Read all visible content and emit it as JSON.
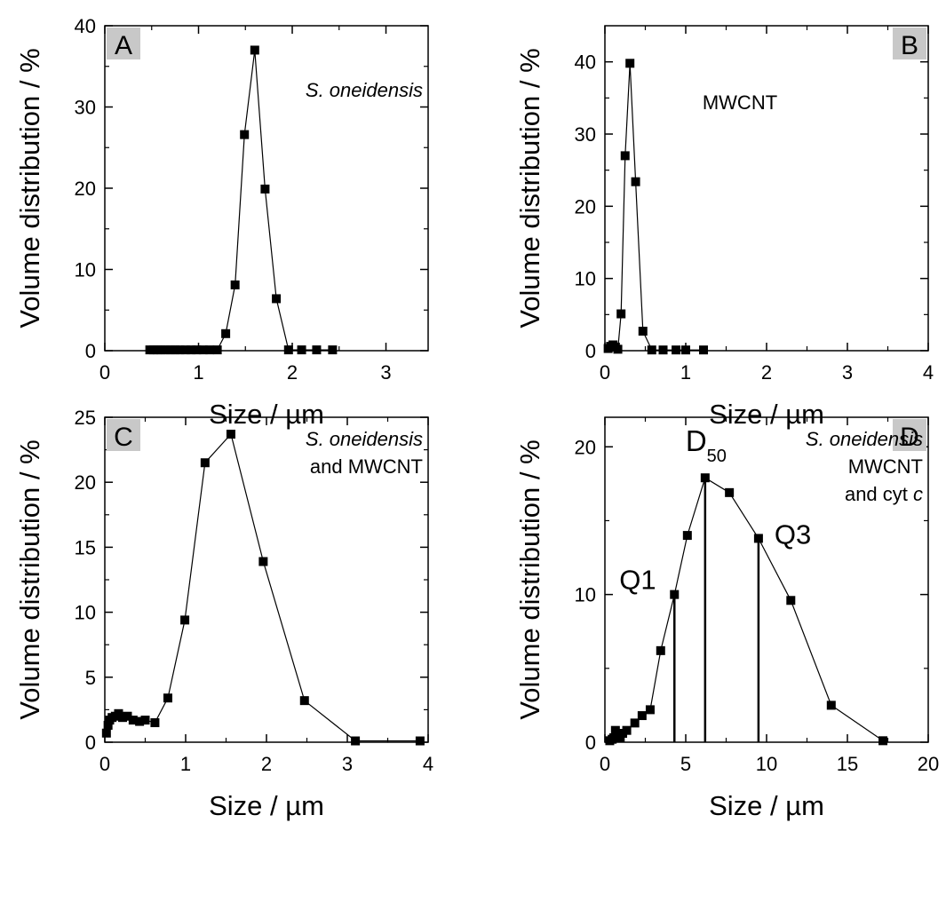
{
  "chart_data": [
    {
      "type": "scatter",
      "panel_label": "A",
      "xlabel": "Size / µm",
      "ylabel": "Volume distribution / %",
      "xlim": [
        0,
        3.45
      ],
      "ylim": [
        0,
        40
      ],
      "xticks": [
        0,
        1,
        2,
        3
      ],
      "yticks": [
        0,
        10,
        20,
        30,
        40
      ],
      "annotations": [
        {
          "lines": [
            {
              "text": "S. oneidensis",
              "italic": true
            }
          ]
        }
      ],
      "series": [
        {
          "x": [
            0.48,
            0.52,
            0.56,
            0.6,
            0.65,
            0.7,
            0.75,
            0.8,
            0.86,
            0.92,
            0.98,
            1.05,
            1.12,
            1.2,
            1.29,
            1.39,
            1.49,
            1.6,
            1.71,
            1.83,
            1.96,
            2.1,
            2.26,
            2.43
          ],
          "y": [
            0.1,
            0.1,
            0.1,
            0.1,
            0.1,
            0.1,
            0.1,
            0.1,
            0.1,
            0.1,
            0.1,
            0.1,
            0.1,
            0.1,
            2.1,
            8.1,
            26.6,
            37.0,
            19.9,
            6.4,
            0.1,
            0.1,
            0.1,
            0.1
          ]
        }
      ]
    },
    {
      "type": "scatter",
      "panel_label": "B",
      "xlabel": "Size / µm",
      "ylabel": "Volume distribution / %",
      "xlim": [
        0,
        4
      ],
      "ylim": [
        0,
        45
      ],
      "xticks": [
        0,
        1,
        2,
        3,
        4
      ],
      "yticks": [
        0,
        10,
        20,
        30,
        40
      ],
      "annotations": [
        {
          "lines": [
            {
              "text": "MWCNT",
              "italic": false
            }
          ]
        }
      ],
      "series": [
        {
          "x": [
            0.04,
            0.07,
            0.1,
            0.13,
            0.16,
            0.2,
            0.25,
            0.31,
            0.38,
            0.47,
            0.58,
            0.72,
            0.88,
            1.0,
            1.22
          ],
          "y": [
            0.3,
            0.6,
            0.8,
            0.5,
            0.2,
            5.1,
            27.0,
            39.8,
            23.4,
            2.7,
            0.1,
            0.1,
            0.1,
            0.1,
            0.1
          ]
        }
      ]
    },
    {
      "type": "scatter",
      "panel_label": "C",
      "xlabel": "Size / µm",
      "ylabel": "Volume distribution / %",
      "xlim": [
        0,
        4
      ],
      "ylim": [
        0,
        25
      ],
      "xticks": [
        0,
        1,
        2,
        3,
        4
      ],
      "yticks": [
        0,
        5,
        10,
        15,
        20,
        25
      ],
      "annotations": [
        {
          "lines": [
            {
              "text": "S. oneidensis",
              "italic": true
            },
            {
              "text": "and MWCNT",
              "italic": false
            }
          ]
        }
      ],
      "series": [
        {
          "x": [
            0.02,
            0.04,
            0.06,
            0.09,
            0.13,
            0.17,
            0.22,
            0.28,
            0.35,
            0.43,
            0.5,
            0.62,
            0.78,
            0.99,
            1.24,
            1.56,
            1.96,
            2.47,
            3.1,
            3.9
          ],
          "y": [
            0.7,
            1.3,
            1.7,
            1.9,
            2.0,
            2.2,
            1.9,
            2.0,
            1.7,
            1.6,
            1.7,
            1.5,
            3.4,
            9.4,
            21.5,
            23.7,
            13.9,
            3.2,
            0.1,
            0.1
          ]
        }
      ]
    },
    {
      "type": "scatter",
      "panel_label": "D",
      "xlabel": "Size / µm",
      "ylabel": "Volume distribution / %",
      "xlim": [
        0,
        20
      ],
      "ylim": [
        0,
        22
      ],
      "xticks": [
        0,
        5,
        10,
        15,
        20
      ],
      "yticks": [
        0,
        10,
        20
      ],
      "annotations": [
        {
          "lines": [
            {
              "text": "S. oneidensis",
              "italic": true
            },
            {
              "text": "MWCNT",
              "italic": false
            },
            {
              "text": "and cyt ",
              "italic": false,
              "suffix": "c"
            }
          ]
        },
        {
          "label": "Q1",
          "x": 4.3,
          "y": 10.0
        },
        {
          "label": "D",
          "sub": "50",
          "x": 6.2,
          "y": 17.9
        },
        {
          "label": "Q3",
          "x": 9.5,
          "y": 13.8
        }
      ],
      "series": [
        {
          "x": [
            0.3,
            0.45,
            0.55,
            0.65,
            0.8,
            0.95,
            1.1,
            1.35,
            1.85,
            2.3,
            2.8,
            3.45,
            4.3,
            5.1,
            6.2,
            7.7,
            9.5,
            11.5,
            14.0,
            17.2
          ],
          "y": [
            0.1,
            0.2,
            0.3,
            0.8,
            0.6,
            0.3,
            0.6,
            0.8,
            1.3,
            1.8,
            2.2,
            6.2,
            10.0,
            14.0,
            17.9,
            16.9,
            13.8,
            9.6,
            2.5,
            0.1
          ]
        }
      ]
    }
  ]
}
